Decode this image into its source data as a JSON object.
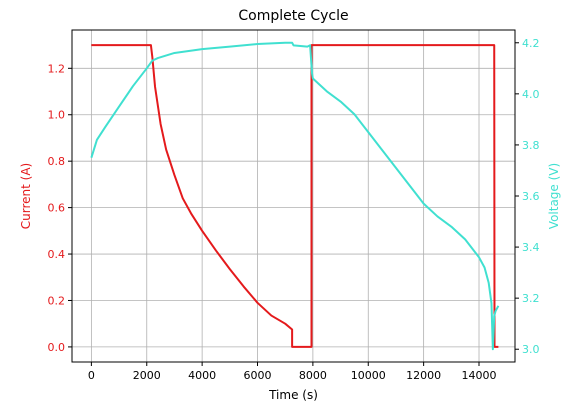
{
  "chart_data": {
    "type": "line",
    "title": "Complete Cycle",
    "xlabel": "Time (s)",
    "ylabel_left": "Current (A)",
    "ylabel_right": "Voltage (V)",
    "xlim": [
      -700,
      15300
    ],
    "ylim_left": [
      -0.065,
      1.365
    ],
    "ylim_right": [
      2.95,
      4.25
    ],
    "x_ticks": [
      0,
      2000,
      4000,
      6000,
      8000,
      10000,
      12000,
      14000
    ],
    "y_left_ticks": [
      0.0,
      0.2,
      0.4,
      0.6,
      0.8,
      1.0,
      1.2
    ],
    "y_left_tick_labels": [
      "0.0",
      "0.2",
      "0.4",
      "0.6",
      "0.8",
      "1.0",
      "1.2"
    ],
    "y_right_ticks": [
      3.0,
      3.2,
      3.4,
      3.6,
      3.8,
      4.0,
      4.2
    ],
    "y_right_tick_labels": [
      "3.0",
      "3.2",
      "3.4",
      "3.6",
      "3.8",
      "4.0",
      "4.2"
    ],
    "grid": true,
    "colors": {
      "current": "#e41a1c",
      "voltage": "#40e0d0",
      "left_axis": "#e41a1c",
      "right_axis": "#40e0d0"
    },
    "series": [
      {
        "axis": "left",
        "color": "#e41a1c",
        "x": [
          0,
          2150,
          2200,
          2300,
          2500,
          2700,
          3000,
          3300,
          3600,
          4000,
          4500,
          5000,
          5500,
          6000,
          6500,
          7000,
          7250,
          7250,
          7950,
          7950,
          14550,
          14560,
          14700
        ],
        "y": [
          1.3,
          1.3,
          1.25,
          1.12,
          0.96,
          0.85,
          0.74,
          0.64,
          0.575,
          0.5,
          0.415,
          0.335,
          0.26,
          0.19,
          0.135,
          0.1,
          0.075,
          0.0,
          0.0,
          1.3,
          1.3,
          0.0,
          0.0
        ]
      },
      {
        "axis": "right",
        "color": "#40e0d0",
        "x": [
          0,
          200,
          500,
          1000,
          1500,
          2000,
          2200,
          2400,
          3000,
          4000,
          5000,
          6000,
          7000,
          7250,
          7300,
          7800,
          7900,
          7950,
          7970,
          8000,
          8500,
          9000,
          9500,
          10000,
          10500,
          11000,
          11500,
          12000,
          12500,
          13000,
          13500,
          14000,
          14200,
          14350,
          14450,
          14500,
          14550,
          14600,
          14700
        ],
        "y": [
          3.75,
          3.82,
          3.87,
          3.95,
          4.03,
          4.1,
          4.13,
          4.14,
          4.16,
          4.175,
          4.185,
          4.195,
          4.2,
          4.2,
          4.19,
          4.185,
          4.19,
          4.11,
          4.08,
          4.06,
          4.01,
          3.97,
          3.92,
          3.85,
          3.78,
          3.71,
          3.64,
          3.57,
          3.52,
          3.48,
          3.43,
          3.36,
          3.32,
          3.26,
          3.18,
          3.0,
          3.13,
          3.15,
          3.17
        ]
      }
    ]
  }
}
